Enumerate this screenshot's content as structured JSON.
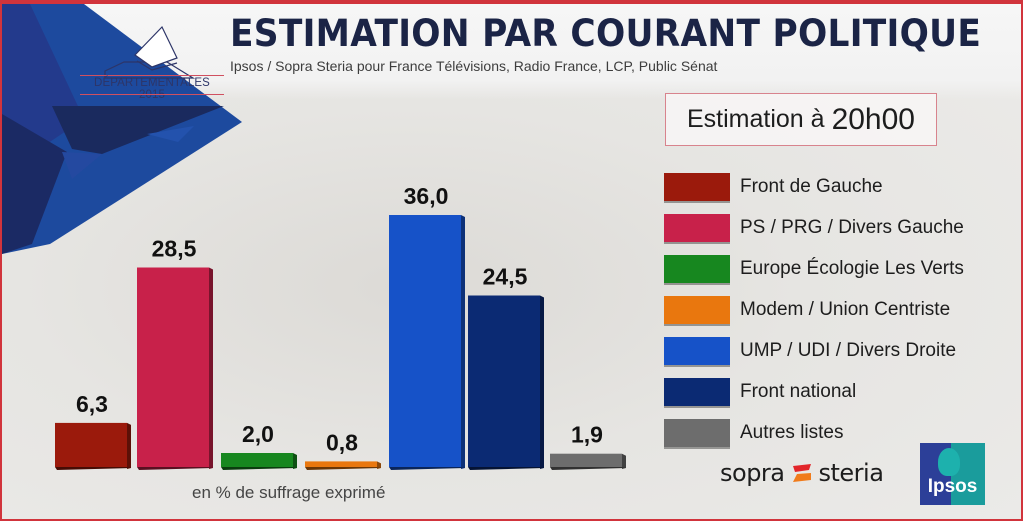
{
  "header": {
    "logo_label": "DÉPARTEMENTALES 2015",
    "title": "ESTIMATION PAR COURANT POLITIQUE",
    "subtitle": "Ipsos / Sopra Steria pour France Télévisions, Radio France, LCP, Public Sénat"
  },
  "estimation_box": {
    "prefix": "Estimation à",
    "time": "20h00"
  },
  "footnote": "en % de suffrage exprimé",
  "logos": {
    "sopra_left": "sopra",
    "sopra_right": "steria",
    "ipsos": "Ipsos"
  },
  "icons": {
    "ballot_box": "ballot-box-icon",
    "sopra_mark": "sopra-steria-logo-mark",
    "ipsos_logo": "ipsos-logo"
  },
  "chart_data": {
    "type": "bar",
    "title": "ESTIMATION PAR COURANT POLITIQUE",
    "xlabel": "",
    "ylabel": "en % de suffrage exprimé",
    "ylim": [
      0,
      40
    ],
    "grid": false,
    "legend_position": "right",
    "categories": [
      "Front de Gauche",
      "PS / PRG / Divers Gauche",
      "Europe Écologie Les Verts",
      "Modem / Union Centriste",
      "UMP / UDI / Divers Droite",
      "Front national",
      "Autres listes"
    ],
    "values": [
      6.3,
      28.5,
      2.0,
      0.8,
      36.0,
      24.5,
      1.9
    ],
    "value_labels": [
      "6,3",
      "28,5",
      "2,0",
      "0,8",
      "36,0",
      "24,5",
      "1,9"
    ],
    "colors": [
      "#9b1a0c",
      "#c8214a",
      "#17871f",
      "#e9770e",
      "#1652c8",
      "#0b2a73",
      "#6d6d6d"
    ],
    "group_gaps_after": [
      3
    ]
  }
}
